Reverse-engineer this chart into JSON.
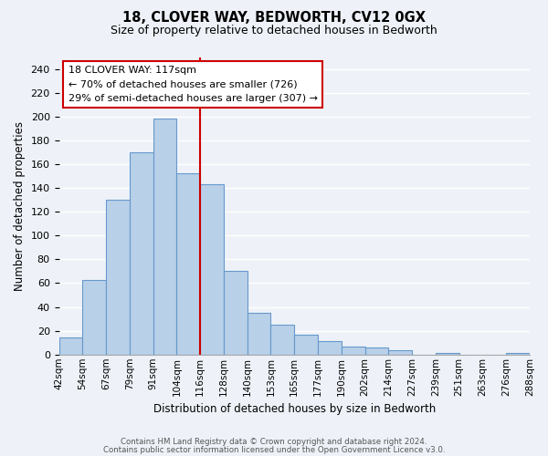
{
  "title": "18, CLOVER WAY, BEDWORTH, CV12 0GX",
  "subtitle": "Size of property relative to detached houses in Bedworth",
  "xlabel": "Distribution of detached houses by size in Bedworth",
  "ylabel": "Number of detached properties",
  "bin_edges": [
    "42sqm",
    "54sqm",
    "67sqm",
    "79sqm",
    "91sqm",
    "104sqm",
    "116sqm",
    "128sqm",
    "140sqm",
    "153sqm",
    "165sqm",
    "177sqm",
    "190sqm",
    "202sqm",
    "214sqm",
    "227sqm",
    "239sqm",
    "251sqm",
    "263sqm",
    "276sqm",
    "288sqm"
  ],
  "bar_heights": [
    14,
    63,
    130,
    170,
    198,
    152,
    143,
    70,
    35,
    25,
    17,
    11,
    7,
    6,
    4,
    0,
    1,
    0,
    0,
    1
  ],
  "bar_color": "#b8d0e8",
  "bar_edge_color": "#6699cc",
  "ylim": [
    0,
    250
  ],
  "yticks": [
    0,
    20,
    40,
    60,
    80,
    100,
    120,
    140,
    160,
    180,
    200,
    220,
    240
  ],
  "annotation_title": "18 CLOVER WAY: 117sqm",
  "annotation_line1": "← 70% of detached houses are smaller (726)",
  "annotation_line2": "29% of semi-detached houses are larger (307) →",
  "annotation_box_color": "#ffffff",
  "annotation_box_edge": "#cc0000",
  "property_line_x": 6,
  "footer1": "Contains HM Land Registry data © Crown copyright and database right 2024.",
  "footer2": "Contains public sector information licensed under the Open Government Licence v3.0.",
  "bg_color": "#eef2f8",
  "grid_color": "#ffffff"
}
